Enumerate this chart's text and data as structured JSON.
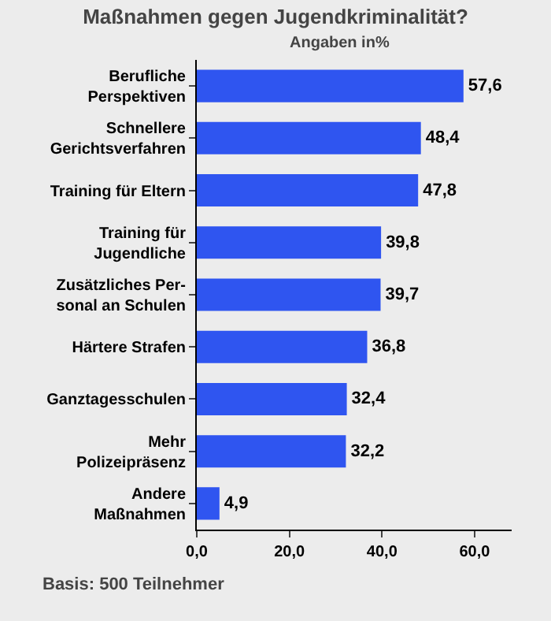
{
  "chart_data": {
    "type": "bar",
    "orientation": "horizontal",
    "title": "Maßnahmen gegen Jugendkriminalität?",
    "subtitle": "Angaben in%",
    "categories": [
      "Berufliche\nPerspektiven",
      "Schnellere\nGerichtsverfahren",
      "Training für Eltern",
      "Training für\nJugendliche",
      "Zusätzliches Per-\nsonal an Schulen",
      "Härtere Strafen",
      "Ganztagesschulen",
      "Mehr\nPolizeipräsenz",
      "Andere\nMaßnahmen"
    ],
    "values": [
      57.6,
      48.4,
      47.8,
      39.8,
      39.7,
      36.8,
      32.4,
      32.2,
      4.9
    ],
    "value_labels": [
      "57,6",
      "48,4",
      "47,8",
      "39,8",
      "39,7",
      "36,8",
      "32,4",
      "32,2",
      "4,9"
    ],
    "color": "#2f55f0",
    "xlim": [
      0,
      68
    ],
    "xticks": [
      {
        "value": 0,
        "label": "0,0"
      },
      {
        "value": 20,
        "label": "20,0"
      },
      {
        "value": 40,
        "label": "40,0"
      },
      {
        "value": 60,
        "label": "60,0"
      }
    ],
    "grid": false,
    "annotations": [
      "Basis: 500 Teilnehmer"
    ]
  }
}
